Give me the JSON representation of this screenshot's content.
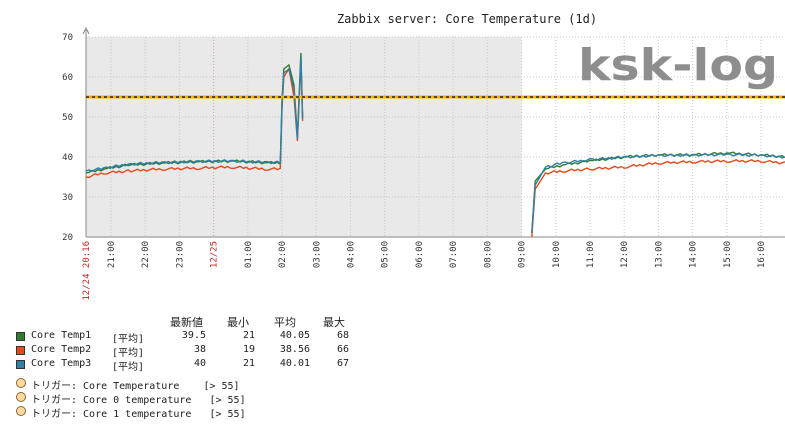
{
  "chart_data": {
    "type": "line",
    "title": "Zabbix server: Core Temperature (1d)",
    "watermark": "ksk-log",
    "ylim": [
      20,
      70
    ],
    "yticks": [
      20,
      30,
      40,
      50,
      60,
      70
    ],
    "x_range_hours": [
      20.27,
      40.7
    ],
    "x_ticks": [
      {
        "h": 20.27,
        "label": "12/24 20:16",
        "red": true
      },
      {
        "h": 21,
        "label": "21:00"
      },
      {
        "h": 22,
        "label": "22:00"
      },
      {
        "h": 23,
        "label": "23:00"
      },
      {
        "h": 24,
        "label": "12/25",
        "red": true
      },
      {
        "h": 25,
        "label": "01:00"
      },
      {
        "h": 26,
        "label": "02:00"
      },
      {
        "h": 27,
        "label": "03:00"
      },
      {
        "h": 28,
        "label": "04:00"
      },
      {
        "h": 29,
        "label": "05:00"
      },
      {
        "h": 30,
        "label": "06:00"
      },
      {
        "h": 31,
        "label": "07:00"
      },
      {
        "h": 32,
        "label": "08:00"
      },
      {
        "h": 33,
        "label": "09:00"
      },
      {
        "h": 34,
        "label": "10:00"
      },
      {
        "h": 35,
        "label": "11:00"
      },
      {
        "h": 36,
        "label": "12:00"
      },
      {
        "h": 37,
        "label": "13:00"
      },
      {
        "h": 38,
        "label": "14:00"
      },
      {
        "h": 39,
        "label": "15:00"
      },
      {
        "h": 40,
        "label": "16:00"
      }
    ],
    "shaded_range_hours": [
      20.27,
      33.0
    ],
    "trigger_level": 55,
    "series": [
      {
        "name": "Core Temp1",
        "color": "#2e7d32",
        "points": [
          [
            20.27,
            36
          ],
          [
            20.8,
            37
          ],
          [
            21.5,
            38
          ],
          [
            22.5,
            38.5
          ],
          [
            23.5,
            38.8
          ],
          [
            24.5,
            39
          ],
          [
            25.5,
            38.6
          ],
          [
            25.95,
            38.5
          ],
          [
            26.0,
            54
          ],
          [
            26.05,
            62
          ],
          [
            26.2,
            63
          ],
          [
            26.35,
            58
          ],
          [
            26.45,
            45
          ],
          [
            26.55,
            66
          ],
          [
            26.6,
            50
          ],
          [
            33.3,
            21
          ],
          [
            33.4,
            34
          ],
          [
            33.7,
            37
          ],
          [
            34.2,
            38
          ],
          [
            35,
            39
          ],
          [
            36,
            40
          ],
          [
            37,
            40.5
          ],
          [
            38,
            40.5
          ],
          [
            39,
            41
          ],
          [
            40,
            40.5
          ],
          [
            40.7,
            40
          ]
        ]
      },
      {
        "name": "Core Temp2",
        "color": "#e64a19",
        "points": [
          [
            20.27,
            35
          ],
          [
            20.8,
            36
          ],
          [
            21.5,
            36.5
          ],
          [
            22.5,
            37
          ],
          [
            23.5,
            37.2
          ],
          [
            24.5,
            37.5
          ],
          [
            25.5,
            37
          ],
          [
            25.95,
            37
          ],
          [
            26.0,
            52
          ],
          [
            26.05,
            60
          ],
          [
            26.2,
            62
          ],
          [
            26.35,
            55
          ],
          [
            26.45,
            44
          ],
          [
            26.55,
            64
          ],
          [
            26.6,
            49
          ],
          [
            33.3,
            20
          ],
          [
            33.4,
            32
          ],
          [
            33.7,
            36
          ],
          [
            34.2,
            36.5
          ],
          [
            35,
            37
          ],
          [
            36,
            37.5
          ],
          [
            37,
            38.5
          ],
          [
            38,
            38.8
          ],
          [
            39,
            39
          ],
          [
            40,
            39
          ],
          [
            40.7,
            38.5
          ]
        ]
      },
      {
        "name": "Core Temp3",
        "color": "#2f7fa6",
        "points": [
          [
            20.27,
            36.5
          ],
          [
            20.8,
            37.2
          ],
          [
            21.5,
            38.2
          ],
          [
            22.5,
            38.6
          ],
          [
            23.5,
            38.9
          ],
          [
            24.5,
            39
          ],
          [
            25.5,
            38.7
          ],
          [
            25.95,
            38.6
          ],
          [
            26.0,
            53
          ],
          [
            26.05,
            61
          ],
          [
            26.2,
            62
          ],
          [
            26.35,
            57
          ],
          [
            26.45,
            44.5
          ],
          [
            26.55,
            65
          ],
          [
            26.6,
            49.5
          ],
          [
            33.3,
            21
          ],
          [
            33.4,
            33
          ],
          [
            33.7,
            37.5
          ],
          [
            34.2,
            38.5
          ],
          [
            35,
            39.3
          ],
          [
            36,
            40
          ],
          [
            37,
            40.4
          ],
          [
            38,
            40.5
          ],
          [
            39,
            40.6
          ],
          [
            40,
            40.4
          ],
          [
            40.7,
            40
          ]
        ]
      }
    ]
  },
  "legend": {
    "headers": {
      "last": "最新値",
      "min": "最小",
      "avg": "平均",
      "max": "最大"
    },
    "items": [
      {
        "name": "Core Temp1",
        "color": "#2e7d32",
        "func": "[平均]",
        "last": "39.5",
        "min": "21",
        "avg": "40.05",
        "max": "68"
      },
      {
        "name": "Core Temp2",
        "color": "#e64a19",
        "func": "[平均]",
        "last": "38",
        "min": "19",
        "avg": "38.56",
        "max": "66"
      },
      {
        "name": "Core Temp3",
        "color": "#2f7fa6",
        "func": "[平均]",
        "last": "40",
        "min": "21",
        "avg": "40.01",
        "max": "67"
      }
    ],
    "triggers": [
      {
        "text": "トリガー: Core Temperature    [> 55]"
      },
      {
        "text": "トリガー: Core 0 temperature   [> 55]"
      },
      {
        "text": "トリガー: Core 1 temperature   [> 55]"
      }
    ]
  }
}
